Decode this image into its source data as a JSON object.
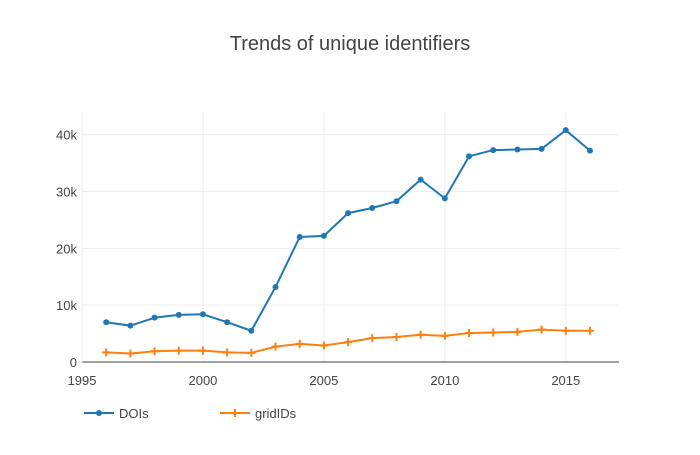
{
  "chart_data": {
    "type": "line",
    "title": "Trends of unique identifiers",
    "xlabel": "",
    "ylabel": "",
    "x": [
      1996,
      1997,
      1998,
      1999,
      2000,
      2001,
      2002,
      2003,
      2004,
      2005,
      2006,
      2007,
      2008,
      2009,
      2010,
      2011,
      2012,
      2013,
      2014,
      2015,
      2016
    ],
    "xlim": [
      1995,
      2017.2
    ],
    "ylim": [
      0,
      44000
    ],
    "xticks": [
      1995,
      2000,
      2005,
      2010,
      2015
    ],
    "xtick_labels": [
      "1995",
      "2000",
      "2005",
      "2010",
      "2015"
    ],
    "yticks": [
      0,
      10000,
      20000,
      30000,
      40000
    ],
    "ytick_labels": [
      "0",
      "10k",
      "20k",
      "30k",
      "40k"
    ],
    "grid": true,
    "legend_position": "bottom-left",
    "series": [
      {
        "name": "DOIs",
        "color": "#1f77b4",
        "marker": "circle",
        "values": [
          7000,
          6400,
          7800,
          8300,
          8400,
          7000,
          5500,
          13200,
          22000,
          22200,
          26200,
          27100,
          28300,
          32100,
          28800,
          36200,
          37300,
          37400,
          37500,
          40800,
          37200
        ]
      },
      {
        "name": "gridIDs",
        "color": "#ff7f0e",
        "marker": "cross",
        "values": [
          1700,
          1500,
          1900,
          2000,
          2000,
          1700,
          1600,
          2700,
          3200,
          2900,
          3500,
          4200,
          4400,
          4800,
          4600,
          5100,
          5200,
          5300,
          5700,
          5500,
          5500
        ]
      }
    ]
  }
}
